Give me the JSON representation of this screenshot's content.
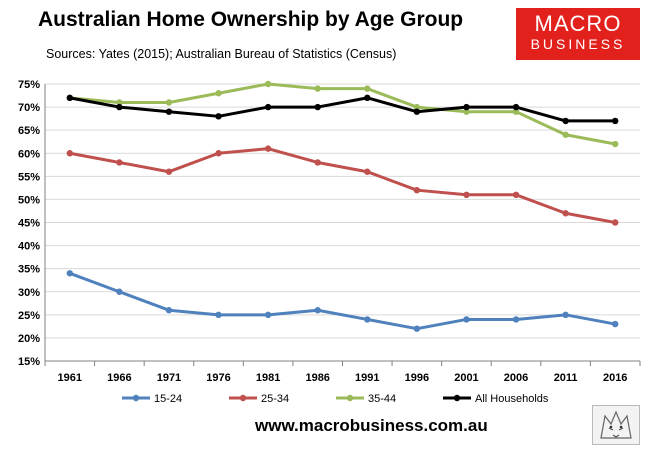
{
  "header": {
    "title": "Australian Home Ownership by Age Group",
    "sources": "Sources: Yates (2015); Australian Bureau of Statistics (Census)"
  },
  "logo": {
    "line1": "MACRO",
    "line2": "BUSINESS"
  },
  "footer": {
    "url": "www.macrobusiness.com.au"
  },
  "colors": {
    "s15_24": "#4f81bd",
    "s25_34": "#c0504d",
    "s35_44": "#9bbb59",
    "all": "#000000",
    "logo_bg": "#e2211c"
  },
  "chart_data": {
    "type": "line",
    "title": "Australian Home Ownership by Age Group",
    "x": [
      "1961",
      "1966",
      "1971",
      "1976",
      "1981",
      "1986",
      "1991",
      "1996",
      "2001",
      "2006",
      "2011",
      "2016"
    ],
    "yticks": [
      "15%",
      "20%",
      "25%",
      "30%",
      "35%",
      "40%",
      "45%",
      "50%",
      "55%",
      "60%",
      "65%",
      "70%",
      "75%"
    ],
    "ylim": [
      15,
      75
    ],
    "grid": true,
    "legend": "bottom",
    "series": [
      {
        "name": "15-24",
        "color": "#4f81bd",
        "values": [
          34,
          30,
          26,
          25,
          25,
          26,
          24,
          22,
          24,
          24,
          25,
          23
        ]
      },
      {
        "name": "25-34",
        "color": "#c0504d",
        "values": [
          60,
          58,
          56,
          60,
          61,
          58,
          56,
          52,
          51,
          51,
          47,
          45
        ]
      },
      {
        "name": "35-44",
        "color": "#9bbb59",
        "values": [
          72,
          71,
          71,
          73,
          75,
          74,
          74,
          70,
          69,
          69,
          64,
          62
        ]
      },
      {
        "name": "All Households",
        "color": "#000000",
        "values": [
          72,
          70,
          69,
          68,
          70,
          70,
          72,
          69,
          70,
          70,
          67,
          67
        ]
      }
    ]
  }
}
